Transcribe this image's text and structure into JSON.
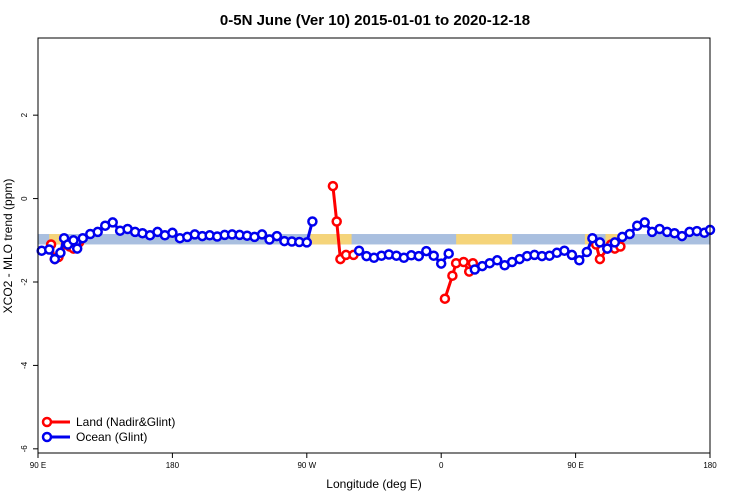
{
  "chart_data": {
    "type": "line",
    "title": "0-5N June (Ver 10)   2015-01-01 to 2020-12-18",
    "xlabel": "Longitude (deg E)",
    "ylabel": "XCO2 - MLO trend (ppm)",
    "xlim": [
      90,
      450
    ],
    "ylim": [
      -6.1,
      3.85
    ],
    "x_ticks": [
      {
        "value": 90,
        "label": "90 E"
      },
      {
        "value": 162,
        "label": "180"
      },
      {
        "value": 234,
        "label": "90 W"
      },
      {
        "value": 306,
        "label": "0"
      },
      {
        "value": 378,
        "label": "90 E"
      },
      {
        "value": 450,
        "label": "180"
      }
    ],
    "y_ticks": [
      {
        "value": 2,
        "label": "2"
      },
      {
        "value": 0,
        "label": "0"
      },
      {
        "value": -2,
        "label": "-2"
      },
      {
        "value": -4,
        "label": "-4"
      },
      {
        "value": -6,
        "label": "-6"
      }
    ],
    "grid": false,
    "legend_position": "bottom-left",
    "background_band": {
      "y_range": [
        -1.1,
        -0.85
      ],
      "ocean_color": "#a9bfdf",
      "land_color": "#f5d47a",
      "land_segments": [
        [
          96,
          103
        ],
        [
          112,
          115
        ],
        [
          236,
          258
        ],
        [
          314,
          344
        ],
        [
          383,
          386
        ],
        [
          394,
          402
        ]
      ]
    },
    "series": [
      {
        "name": "Land (Nadir&Glint)",
        "color": "#ff0000",
        "segments": [
          [
            [
              97,
              -1.1
            ],
            [
              99,
              -1.45
            ],
            [
              101,
              -1.4
            ],
            [
              105,
              -1.1
            ],
            [
              107,
              -1.15
            ],
            [
              109,
              -1.2
            ],
            [
              112,
              -1.05
            ]
          ],
          [
            [
              248,
              0.3
            ],
            [
              250,
              -0.55
            ],
            [
              252,
              -1.45
            ],
            [
              255,
              -1.35
            ],
            [
              259,
              -1.35
            ]
          ],
          [
            [
              308,
              -2.4
            ],
            [
              312,
              -1.85
            ],
            [
              314,
              -1.55
            ],
            [
              318,
              -1.52
            ],
            [
              321,
              -1.75
            ],
            [
              323,
              -1.55
            ]
          ],
          [
            [
              389,
              -1.1
            ],
            [
              391,
              -1.45
            ],
            [
              395,
              -1.2
            ],
            [
              397,
              -1.1
            ],
            [
              399,
              -1.2
            ],
            [
              402,
              -1.15
            ]
          ]
        ]
      },
      {
        "name": "Ocean (Glint)",
        "color": "#0000ee",
        "segments": [
          [
            [
              92,
              -1.25
            ],
            [
              96,
              -1.22
            ],
            [
              99,
              -1.45
            ],
            [
              102,
              -1.3
            ],
            [
              104,
              -0.95
            ],
            [
              106,
              -1.1
            ],
            [
              109,
              -1.0
            ],
            [
              111,
              -1.2
            ],
            [
              114,
              -0.95
            ],
            [
              118,
              -0.85
            ],
            [
              122,
              -0.8
            ],
            [
              126,
              -0.65
            ],
            [
              130,
              -0.57
            ],
            [
              134,
              -0.77
            ],
            [
              138,
              -0.73
            ],
            [
              142,
              -0.8
            ],
            [
              146,
              -0.83
            ],
            [
              150,
              -0.88
            ],
            [
              154,
              -0.8
            ],
            [
              158,
              -0.88
            ],
            [
              162,
              -0.82
            ],
            [
              166,
              -0.95
            ],
            [
              170,
              -0.92
            ],
            [
              174,
              -0.86
            ],
            [
              178,
              -0.9
            ],
            [
              182,
              -0.88
            ],
            [
              186,
              -0.91
            ],
            [
              190,
              -0.87
            ],
            [
              194,
              -0.86
            ],
            [
              198,
              -0.87
            ],
            [
              202,
              -0.89
            ],
            [
              206,
              -0.92
            ],
            [
              210,
              -0.86
            ],
            [
              214,
              -0.98
            ],
            [
              218,
              -0.9
            ],
            [
              222,
              -1.02
            ],
            [
              226,
              -1.03
            ],
            [
              230,
              -1.04
            ],
            [
              234,
              -1.05
            ],
            [
              237,
              -0.55
            ]
          ],
          [
            [
              262,
              -1.25
            ],
            [
              266,
              -1.38
            ],
            [
              270,
              -1.42
            ],
            [
              274,
              -1.37
            ],
            [
              278,
              -1.34
            ],
            [
              282,
              -1.37
            ],
            [
              286,
              -1.42
            ],
            [
              290,
              -1.36
            ],
            [
              294,
              -1.38
            ],
            [
              298,
              -1.26
            ],
            [
              302,
              -1.37
            ],
            [
              306,
              -1.56
            ],
            [
              310,
              -1.32
            ]
          ],
          [
            [
              324,
              -1.7
            ],
            [
              328,
              -1.62
            ],
            [
              332,
              -1.55
            ],
            [
              336,
              -1.48
            ],
            [
              340,
              -1.6
            ],
            [
              344,
              -1.52
            ],
            [
              348,
              -1.45
            ],
            [
              352,
              -1.38
            ],
            [
              356,
              -1.35
            ],
            [
              360,
              -1.38
            ],
            [
              364,
              -1.37
            ],
            [
              368,
              -1.3
            ],
            [
              372,
              -1.25
            ],
            [
              376,
              -1.35
            ],
            [
              380,
              -1.48
            ],
            [
              384,
              -1.28
            ],
            [
              387,
              -0.95
            ],
            [
              391,
              -1.05
            ],
            [
              395,
              -1.2
            ],
            [
              399,
              -1.05
            ],
            [
              403,
              -0.92
            ],
            [
              407,
              -0.85
            ],
            [
              411,
              -0.65
            ],
            [
              415,
              -0.57
            ],
            [
              419,
              -0.8
            ],
            [
              423,
              -0.73
            ],
            [
              427,
              -0.8
            ],
            [
              431,
              -0.83
            ],
            [
              435,
              -0.9
            ],
            [
              439,
              -0.8
            ],
            [
              443,
              -0.78
            ],
            [
              447,
              -0.82
            ],
            [
              450,
              -0.75
            ]
          ]
        ]
      }
    ]
  }
}
